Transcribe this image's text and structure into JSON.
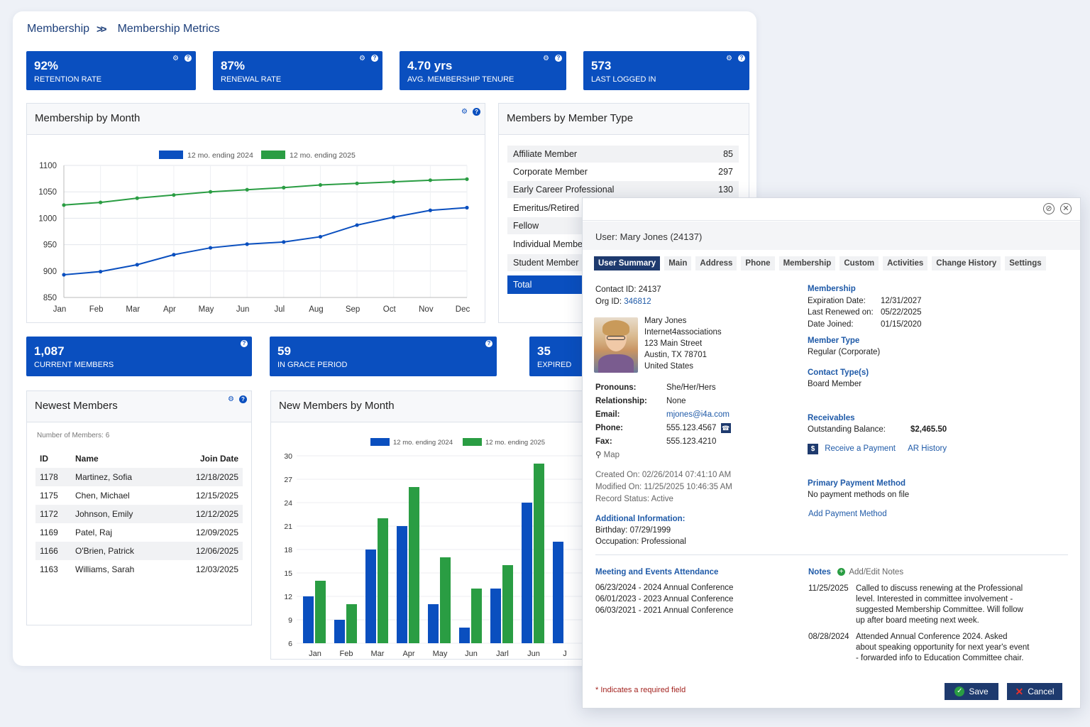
{
  "breadcrumb": {
    "root": "Membership",
    "current": "Membership Metrics"
  },
  "stats_top": [
    {
      "value": "92%",
      "label": "RETENTION RATE"
    },
    {
      "value": "87%",
      "label": "RENEWAL RATE"
    },
    {
      "value": "4.70 yrs",
      "label": "AVG. MEMBERSHIP TENURE"
    },
    {
      "value": "573",
      "label": "LAST LOGGED IN"
    }
  ],
  "stats_mid": [
    {
      "value": "1,087",
      "label": "CURRENT MEMBERS"
    },
    {
      "value": "59",
      "label": "IN GRACE PERIOD"
    },
    {
      "value": "35",
      "label": "EXPIRED"
    }
  ],
  "membership_by_month": {
    "title": "Membership by Month"
  },
  "new_members_by_month": {
    "title": "New Members by Month"
  },
  "member_types": {
    "title": "Members by Member Type",
    "rows": [
      {
        "name": "Affiliate Member",
        "count": "85"
      },
      {
        "name": "Corporate Member",
        "count": "297"
      },
      {
        "name": "Early Career Professional",
        "count": "130"
      },
      {
        "name": "Emeritus/Retired M",
        "count": ""
      },
      {
        "name": "Fellow",
        "count": ""
      },
      {
        "name": "Individual Member",
        "count": ""
      },
      {
        "name": "Student Member",
        "count": ""
      }
    ],
    "total_label": "Total"
  },
  "newest_members": {
    "title": "Newest Members",
    "count_text": "Number of Members: 6",
    "headers": [
      "ID",
      "Name",
      "Join Date"
    ],
    "rows": [
      [
        "1178",
        "Martinez, Sofia",
        "12/18/2025"
      ],
      [
        "1175",
        "Chen, Michael",
        "12/15/2025"
      ],
      [
        "1172",
        "Johnson, Emily",
        "12/12/2025"
      ],
      [
        "1169",
        "Patel, Raj",
        "12/09/2025"
      ],
      [
        "1166",
        "O'Brien, Patrick",
        "12/06/2025"
      ],
      [
        "1163",
        "Williams, Sarah",
        "12/03/2025"
      ]
    ]
  },
  "chart_data": [
    {
      "type": "line",
      "categories": [
        "Jan",
        "Feb",
        "Mar",
        "Apr",
        "May",
        "Jun",
        "Jul",
        "Aug",
        "Sep",
        "Oct",
        "Nov",
        "Dec"
      ],
      "series": [
        {
          "name": "12 mo. ending 2024",
          "color": "#0a4fbf",
          "values": [
            893,
            899,
            912,
            931,
            944,
            951,
            955,
            965,
            987,
            1002,
            1015,
            1020
          ]
        },
        {
          "name": "12 mo. ending 2025",
          "color": "#2a9d43",
          "values": [
            1025,
            1030,
            1038,
            1044,
            1050,
            1054,
            1058,
            1063,
            1066,
            1069,
            1072,
            1074
          ]
        }
      ],
      "ylim": [
        850,
        1100
      ],
      "yticks": [
        850,
        900,
        950,
        1000,
        1050,
        1100
      ],
      "grid": true,
      "legend": "top"
    },
    {
      "type": "bar",
      "categories": [
        "Jan",
        "Feb",
        "Mar",
        "Apr",
        "May",
        "Jun",
        "Jarl",
        "Jun",
        "J"
      ],
      "series": [
        {
          "name": "12 mo. ending 2024",
          "color": "#0a4fbf",
          "values": [
            12,
            9,
            18,
            21,
            11,
            8,
            13,
            24,
            19
          ]
        },
        {
          "name": "12 mo. ending 2025",
          "color": "#2a9d43",
          "values": [
            14,
            11,
            22,
            26,
            17,
            13,
            16,
            29,
            null
          ]
        }
      ],
      "ylim": [
        6,
        30
      ],
      "yticks": [
        6,
        9,
        12,
        15,
        18,
        21,
        24,
        27,
        30
      ],
      "grid": true,
      "legend": "top"
    }
  ],
  "modal": {
    "user_header": "User: Mary Jones (24137)",
    "tabs": [
      "User Summary",
      "Main",
      "Address",
      "Phone",
      "Membership",
      "Custom",
      "Activities",
      "Change History",
      "Settings"
    ],
    "contact_id": "Contact ID: 24137",
    "org_id_label": "Org ID:",
    "org_id": "346812",
    "address": [
      "Mary Jones",
      "Internet4associations",
      "123 Main Street",
      "Austin, TX  78701",
      "United States"
    ],
    "details": [
      {
        "label": "Pronouns:",
        "value": "She/Her/Hers"
      },
      {
        "label": "Relationship:",
        "value": "None"
      },
      {
        "label": "Email:",
        "value": "mjones@i4a.com"
      },
      {
        "label": "Phone:",
        "value": "555.123.4567"
      },
      {
        "label": "Fax:",
        "value": "555.123.4210"
      }
    ],
    "map_label": "Map",
    "created": "Created On: 02/26/2014 07:41:10 AM",
    "modified": "Modified On: 11/25/2025 10:46:35 AM",
    "record_status": "Record Status: Active",
    "additional_title": "Additional Information:",
    "birthday": "Birthday: 07/29/1999",
    "occupation": "Occupation: Professional",
    "membership_title": "Membership",
    "expiration_label": "Expiration Date:",
    "expiration": "12/31/2027",
    "renewed_label": "Last Renewed on:",
    "renewed": "05/22/2025",
    "joined_label": "Date Joined:",
    "joined": "01/15/2020",
    "member_type_title": "Member Type",
    "member_type": "Regular (Corporate)",
    "contact_types_title": "Contact Type(s)",
    "contact_type": "Board Member",
    "receivables_title": "Receivables",
    "balance_label": "Outstanding Balance:",
    "balance": "$2,465.50",
    "receive_payment": "Receive a Payment",
    "ar_history": "AR History",
    "payment_title": "Primary Payment Method",
    "no_payment": "No payment methods on file",
    "add_payment": "Add Payment Method",
    "meetings_title": "Meeting and Events Attendance",
    "meetings": [
      "06/23/2024 - 2024 Annual Conference",
      "06/01/2023 - 2023 Annual Conference",
      "06/03/2021 - 2021 Annual Conference"
    ],
    "notes_title": "Notes",
    "add_notes": "Add/Edit Notes",
    "notes": [
      {
        "date": "11/25/2025",
        "text": "Called to discuss renewing at the Professional level. Interested in committee involvement - suggested Membership Committee. Will follow up after board meeting next week."
      },
      {
        "date": "08/28/2024",
        "text": "Attended Annual Conference 2024. Asked about speaking opportunity for next year's event - forwarded info to Education Committee chair."
      }
    ],
    "required_note": "* Indicates a required field",
    "save_label": "Save",
    "cancel_label": "Cancel"
  }
}
